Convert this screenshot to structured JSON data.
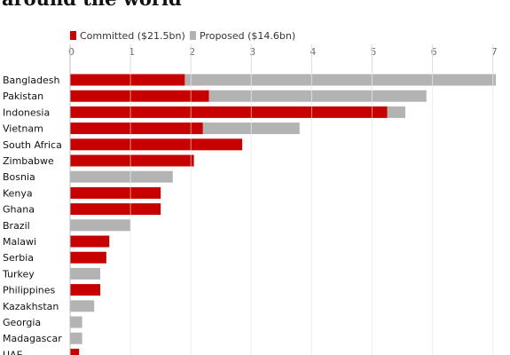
{
  "title": "around the world",
  "chart_data": {
    "type": "bar",
    "orientation": "horizontal",
    "stacked": true,
    "title": "around the world",
    "categories": [
      "Bangladesh",
      "Pakistan",
      "Indonesia",
      "Vietnam",
      "South Africa",
      "Zimbabwe",
      "Bosnia",
      "Kenya",
      "Ghana",
      "Brazil",
      "Malawi",
      "Serbia",
      "Turkey",
      "Philippines",
      "Kazakhstan",
      "Georgia",
      "Madagascar",
      "UAE"
    ],
    "series": [
      {
        "name": "Committed ($21.5bn)",
        "color": "#c70000",
        "values": [
          1.9,
          2.3,
          5.25,
          2.2,
          2.85,
          2.05,
          0,
          1.5,
          1.5,
          0,
          0.65,
          0.6,
          0,
          0.5,
          0,
          0,
          0,
          0.15
        ]
      },
      {
        "name": "Proposed ($14.6bn)",
        "color": "#b3b3b3",
        "values": [
          5.15,
          3.6,
          0.3,
          1.6,
          0,
          0,
          1.7,
          0,
          0,
          1.0,
          0,
          0,
          0.5,
          0,
          0.4,
          0.2,
          0.2,
          0
        ]
      }
    ],
    "xticks": [
      0,
      1,
      2,
      3,
      4,
      5,
      6,
      7
    ],
    "xlim": [
      0,
      7
    ],
    "grid": true,
    "legend_position": "top-left",
    "gridline_color": "#dcdcdc",
    "separator_color": "#ffffff"
  }
}
